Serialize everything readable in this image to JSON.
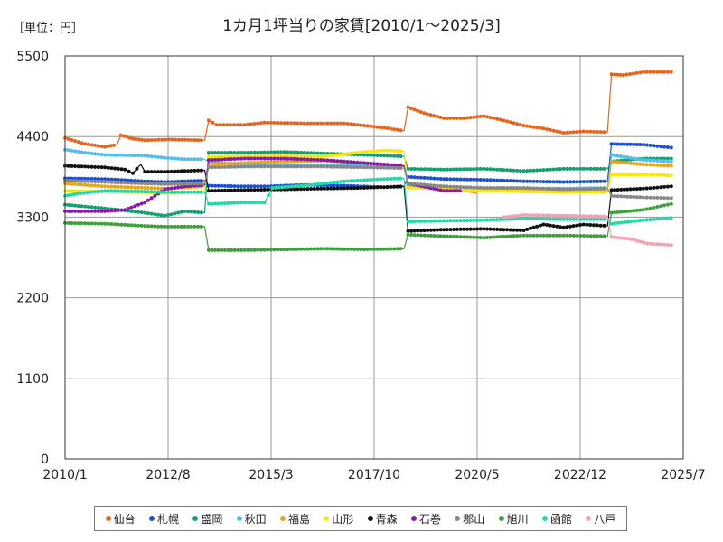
{
  "chart_data": {
    "type": "line",
    "title": "1カ月1坪当りの家賃[2010/1～2025/3]",
    "unit_label": "［単位：円］",
    "xlabel": "",
    "ylabel": "",
    "ylim": [
      0,
      5500
    ],
    "yticks": [
      "0",
      "1100",
      "2200",
      "3300",
      "4400",
      "5500"
    ],
    "xlim": [
      2010.0,
      2025.5
    ],
    "xticks": [
      {
        "label": "2010/1",
        "t": 2010.0
      },
      {
        "label": "2012/8",
        "t": 2012.583
      },
      {
        "label": "2015/3",
        "t": 2015.167
      },
      {
        "label": "2017/10",
        "t": 2017.75
      },
      {
        "label": "2020/5",
        "t": 2020.333
      },
      {
        "label": "2022/12",
        "t": 2022.917
      },
      {
        "label": "2025/7",
        "t": 2025.5
      }
    ],
    "grid": true,
    "legend_position": "bottom",
    "series": [
      {
        "name": "仙台",
        "color": "#e8641c",
        "points": [
          [
            2010.0,
            4380
          ],
          [
            2010.5,
            4300
          ],
          [
            2011.0,
            4260
          ],
          [
            2011.3,
            4290
          ],
          [
            2011.4,
            4420
          ],
          [
            2011.7,
            4370
          ],
          [
            2012.0,
            4350
          ],
          [
            2012.6,
            4360
          ],
          [
            2013.5,
            4350
          ],
          [
            2013.6,
            4620
          ],
          [
            2013.8,
            4560
          ],
          [
            2014.5,
            4560
          ],
          [
            2015.0,
            4590
          ],
          [
            2016.0,
            4580
          ],
          [
            2017.0,
            4580
          ],
          [
            2018.0,
            4520
          ],
          [
            2018.5,
            4480
          ],
          [
            2018.6,
            4800
          ],
          [
            2019.0,
            4720
          ],
          [
            2019.5,
            4650
          ],
          [
            2020.0,
            4650
          ],
          [
            2020.5,
            4680
          ],
          [
            2021.0,
            4620
          ],
          [
            2021.5,
            4550
          ],
          [
            2022.0,
            4510
          ],
          [
            2022.5,
            4450
          ],
          [
            2023.0,
            4470
          ],
          [
            2023.6,
            4460
          ],
          [
            2023.7,
            5250
          ],
          [
            2024.0,
            5240
          ],
          [
            2024.5,
            5280
          ],
          [
            2025.2,
            5280
          ]
        ]
      },
      {
        "name": "札幌",
        "color": "#1a4fd8",
        "points": [
          [
            2010.0,
            3830
          ],
          [
            2011.0,
            3820
          ],
          [
            2012.0,
            3790
          ],
          [
            2012.5,
            3780
          ],
          [
            2013.5,
            3800
          ],
          [
            2013.6,
            3730
          ],
          [
            2014.5,
            3720
          ],
          [
            2015.0,
            3720
          ],
          [
            2016.0,
            3740
          ],
          [
            2017.0,
            3730
          ],
          [
            2018.0,
            3710
          ],
          [
            2018.5,
            3720
          ],
          [
            2018.6,
            3850
          ],
          [
            2019.5,
            3820
          ],
          [
            2020.5,
            3810
          ],
          [
            2021.5,
            3790
          ],
          [
            2022.5,
            3780
          ],
          [
            2023.6,
            3790
          ],
          [
            2023.7,
            4300
          ],
          [
            2024.5,
            4290
          ],
          [
            2025.2,
            4250
          ]
        ]
      },
      {
        "name": "盛岡",
        "color": "#12a070",
        "points": [
          [
            2010.0,
            3470
          ],
          [
            2011.0,
            3420
          ],
          [
            2012.0,
            3360
          ],
          [
            2012.5,
            3320
          ],
          [
            2013.0,
            3380
          ],
          [
            2013.5,
            3360
          ],
          [
            2013.6,
            4180
          ],
          [
            2014.5,
            4180
          ],
          [
            2015.5,
            4190
          ],
          [
            2016.5,
            4170
          ],
          [
            2017.5,
            4150
          ],
          [
            2018.5,
            4130
          ],
          [
            2018.6,
            3960
          ],
          [
            2019.5,
            3950
          ],
          [
            2020.5,
            3960
          ],
          [
            2021.5,
            3930
          ],
          [
            2022.5,
            3960
          ],
          [
            2023.6,
            3960
          ],
          [
            2023.7,
            4060
          ],
          [
            2024.5,
            4100
          ],
          [
            2025.2,
            4100
          ]
        ]
      },
      {
        "name": "秋田",
        "color": "#55bde8",
        "points": [
          [
            2010.0,
            4220
          ],
          [
            2010.5,
            4180
          ],
          [
            2011.0,
            4150
          ],
          [
            2012.0,
            4140
          ],
          [
            2012.5,
            4110
          ],
          [
            2013.0,
            4090
          ],
          [
            2013.5,
            4090
          ],
          [
            2013.6,
            4050
          ],
          [
            2014.5,
            4020
          ],
          [
            2015.5,
            4010
          ],
          [
            2016.5,
            4000
          ],
          [
            2017.5,
            4010
          ],
          [
            2018.5,
            3990
          ],
          [
            2018.6,
            3720
          ],
          [
            2019.5,
            3700
          ],
          [
            2020.5,
            3680
          ],
          [
            2021.5,
            3690
          ],
          [
            2022.5,
            3690
          ],
          [
            2023.6,
            3700
          ],
          [
            2023.7,
            4150
          ],
          [
            2024.5,
            4080
          ],
          [
            2025.2,
            4060
          ]
        ]
      },
      {
        "name": "福島",
        "color": "#e8a618",
        "points": [
          [
            2010.0,
            3760
          ],
          [
            2011.0,
            3720
          ],
          [
            2012.0,
            3700
          ],
          [
            2012.5,
            3690
          ],
          [
            2013.5,
            3720
          ],
          [
            2013.6,
            4020
          ],
          [
            2014.5,
            4040
          ],
          [
            2015.5,
            4060
          ],
          [
            2016.5,
            4070
          ],
          [
            2017.5,
            4040
          ],
          [
            2018.5,
            4000
          ],
          [
            2018.6,
            3760
          ],
          [
            2019.5,
            3720
          ],
          [
            2020.3,
            3640
          ],
          [
            2020.5,
            3680
          ],
          [
            2021.5,
            3670
          ],
          [
            2022.5,
            3660
          ],
          [
            2023.6,
            3660
          ],
          [
            2023.7,
            4060
          ],
          [
            2024.5,
            4020
          ],
          [
            2025.2,
            4000
          ]
        ]
      },
      {
        "name": "山形",
        "color": "#f5e610",
        "points": [
          [
            2010.0,
            3660
          ],
          [
            2011.0,
            3650
          ],
          [
            2012.0,
            3640
          ],
          [
            2012.5,
            3630
          ],
          [
            2013.5,
            3650
          ],
          [
            2013.6,
            4120
          ],
          [
            2014.5,
            4130
          ],
          [
            2015.5,
            4140
          ],
          [
            2016.5,
            4130
          ],
          [
            2017.5,
            4190
          ],
          [
            2018.0,
            4210
          ],
          [
            2018.5,
            4200
          ],
          [
            2018.6,
            3700
          ],
          [
            2019.5,
            3690
          ],
          [
            2020.5,
            3660
          ],
          [
            2021.5,
            3650
          ],
          [
            2022.5,
            3640
          ],
          [
            2023.6,
            3640
          ],
          [
            2023.7,
            3880
          ],
          [
            2024.5,
            3880
          ],
          [
            2025.2,
            3870
          ]
        ]
      },
      {
        "name": "青森",
        "color": "#111111",
        "points": [
          [
            2010.0,
            4000
          ],
          [
            2011.0,
            3980
          ],
          [
            2011.5,
            3950
          ],
          [
            2011.7,
            3900
          ],
          [
            2011.9,
            4020
          ],
          [
            2012.0,
            3920
          ],
          [
            2012.5,
            3920
          ],
          [
            2013.5,
            3940
          ],
          [
            2013.6,
            3660
          ],
          [
            2014.5,
            3670
          ],
          [
            2015.5,
            3680
          ],
          [
            2016.5,
            3690
          ],
          [
            2017.5,
            3700
          ],
          [
            2018.5,
            3720
          ],
          [
            2018.6,
            3110
          ],
          [
            2019.5,
            3130
          ],
          [
            2020.5,
            3140
          ],
          [
            2021.5,
            3120
          ],
          [
            2022.0,
            3200
          ],
          [
            2022.5,
            3160
          ],
          [
            2023.0,
            3200
          ],
          [
            2023.6,
            3180
          ],
          [
            2023.7,
            3670
          ],
          [
            2024.5,
            3690
          ],
          [
            2025.2,
            3720
          ]
        ]
      },
      {
        "name": "石巻",
        "color": "#8a1aa8",
        "points": [
          [
            2010.0,
            3380
          ],
          [
            2011.0,
            3380
          ],
          [
            2011.5,
            3400
          ],
          [
            2012.0,
            3500
          ],
          [
            2012.5,
            3680
          ],
          [
            2013.0,
            3720
          ],
          [
            2013.5,
            3740
          ],
          [
            2013.6,
            4080
          ],
          [
            2014.5,
            4100
          ],
          [
            2015.5,
            4100
          ],
          [
            2016.5,
            4080
          ],
          [
            2017.5,
            4040
          ],
          [
            2018.5,
            4000
          ],
          [
            2018.6,
            3760
          ],
          [
            2019.5,
            3660
          ],
          [
            2019.9,
            3660
          ]
        ]
      },
      {
        "name": "郡山",
        "color": "#888888",
        "points": [
          [
            2010.0,
            3800
          ],
          [
            2011.0,
            3780
          ],
          [
            2012.0,
            3760
          ],
          [
            2012.5,
            3750
          ],
          [
            2013.5,
            3760
          ],
          [
            2013.6,
            3980
          ],
          [
            2014.5,
            3990
          ],
          [
            2015.5,
            3990
          ],
          [
            2016.5,
            3990
          ],
          [
            2017.5,
            3980
          ],
          [
            2018.5,
            3970
          ],
          [
            2018.6,
            3760
          ],
          [
            2019.5,
            3720
          ],
          [
            2020.5,
            3700
          ],
          [
            2021.5,
            3700
          ],
          [
            2022.5,
            3680
          ],
          [
            2023.6,
            3690
          ],
          [
            2023.7,
            3590
          ],
          [
            2024.5,
            3570
          ],
          [
            2025.2,
            3560
          ]
        ]
      },
      {
        "name": "旭川",
        "color": "#3ea03a",
        "points": [
          [
            2010.0,
            3220
          ],
          [
            2011.0,
            3210
          ],
          [
            2012.0,
            3180
          ],
          [
            2012.5,
            3170
          ],
          [
            2013.5,
            3170
          ],
          [
            2013.6,
            2850
          ],
          [
            2014.5,
            2850
          ],
          [
            2015.5,
            2860
          ],
          [
            2016.5,
            2870
          ],
          [
            2017.5,
            2860
          ],
          [
            2018.5,
            2870
          ],
          [
            2018.6,
            3060
          ],
          [
            2019.5,
            3040
          ],
          [
            2020.5,
            3020
          ],
          [
            2021.5,
            3050
          ],
          [
            2022.5,
            3050
          ],
          [
            2023.6,
            3040
          ],
          [
            2023.7,
            3360
          ],
          [
            2024.5,
            3400
          ],
          [
            2025.2,
            3480
          ]
        ]
      },
      {
        "name": "函館",
        "color": "#24d8a8",
        "points": [
          [
            2010.0,
            3590
          ],
          [
            2010.3,
            3620
          ],
          [
            2011.0,
            3660
          ],
          [
            2012.0,
            3650
          ],
          [
            2012.5,
            3640
          ],
          [
            2013.5,
            3640
          ],
          [
            2013.6,
            3480
          ],
          [
            2014.5,
            3500
          ],
          [
            2015.0,
            3500
          ],
          [
            2015.2,
            3700
          ],
          [
            2016.0,
            3730
          ],
          [
            2017.0,
            3790
          ],
          [
            2018.0,
            3820
          ],
          [
            2018.5,
            3830
          ],
          [
            2018.6,
            3240
          ],
          [
            2019.5,
            3250
          ],
          [
            2020.5,
            3260
          ],
          [
            2021.5,
            3280
          ],
          [
            2022.5,
            3270
          ],
          [
            2023.6,
            3270
          ],
          [
            2023.7,
            3210
          ],
          [
            2024.5,
            3260
          ],
          [
            2025.2,
            3290
          ]
        ]
      },
      {
        "name": "八戸",
        "color": "#f0a2b0",
        "points": [
          [
            2021.0,
            3300
          ],
          [
            2021.5,
            3330
          ],
          [
            2022.5,
            3320
          ],
          [
            2023.6,
            3310
          ],
          [
            2023.7,
            3030
          ],
          [
            2024.2,
            3000
          ],
          [
            2024.6,
            2940
          ],
          [
            2025.2,
            2920
          ]
        ]
      }
    ]
  }
}
